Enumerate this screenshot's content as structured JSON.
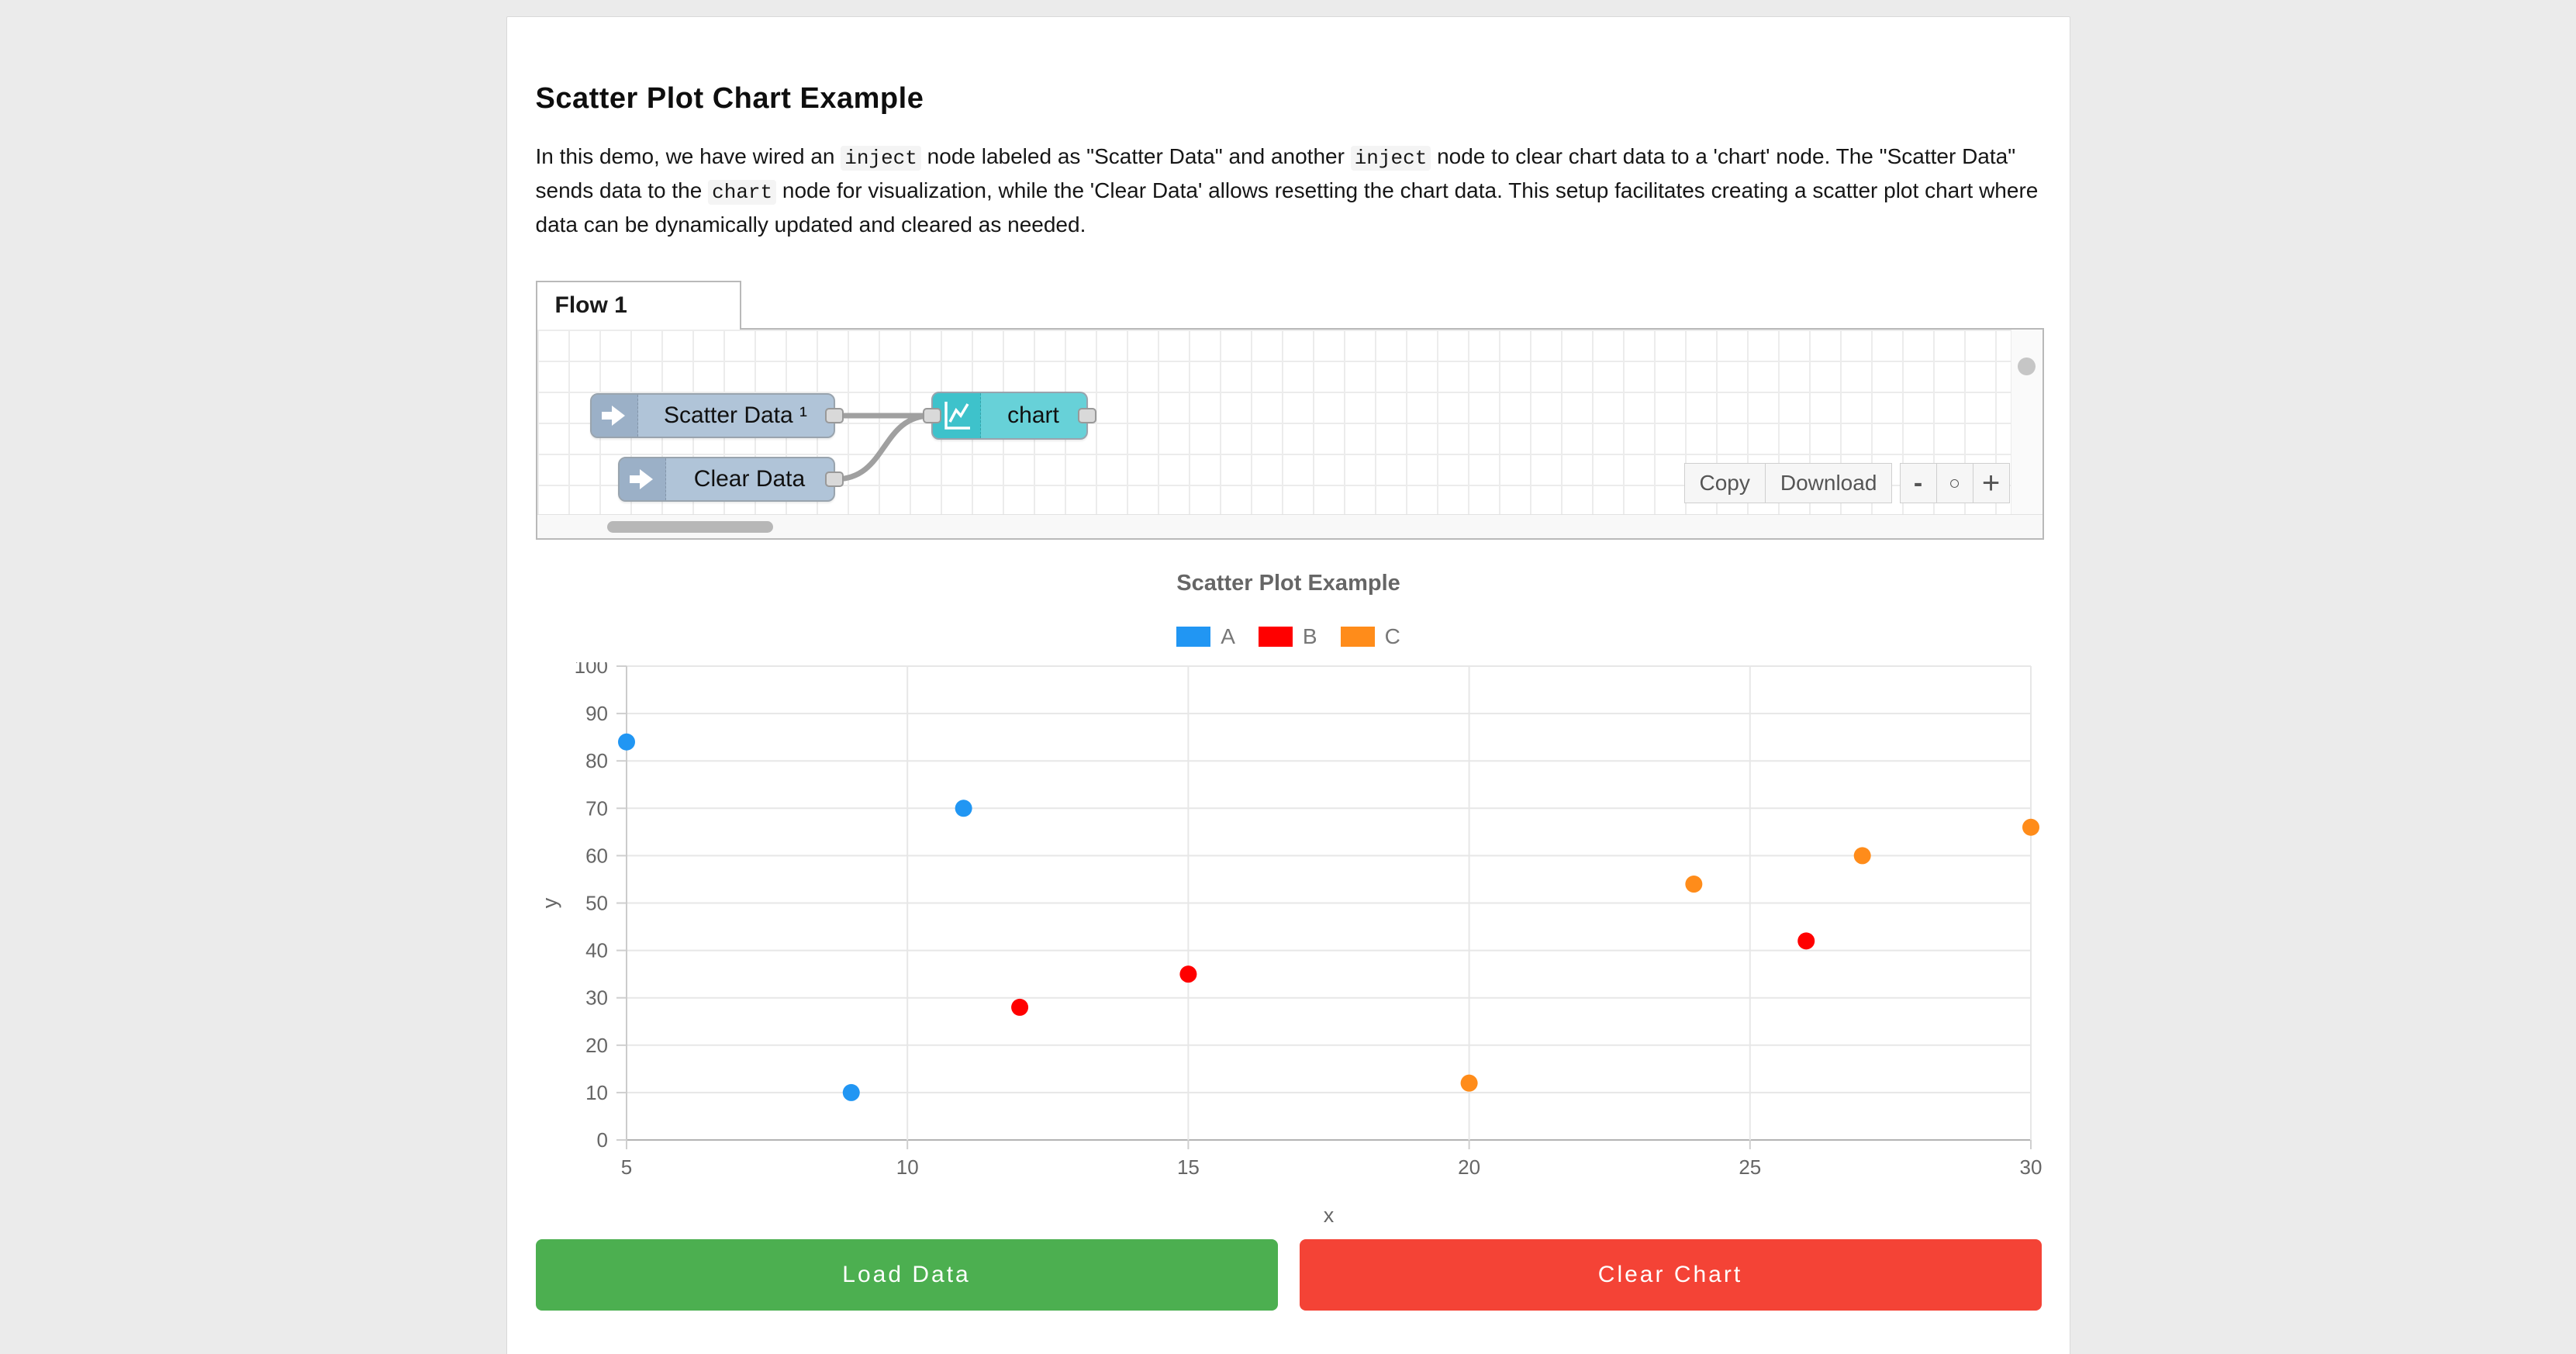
{
  "page": {
    "title": "Scatter Plot Chart Example"
  },
  "intro": {
    "segments": [
      {
        "text": "In this demo, we have wired an ",
        "code": false
      },
      {
        "text": "inject",
        "code": true
      },
      {
        "text": " node labeled as \"Scatter Data\" and another ",
        "code": false
      },
      {
        "text": "inject",
        "code": true
      },
      {
        "text": " node to clear chart data to a 'chart' node. The \"Scatter Data\" sends data to the ",
        "code": false
      },
      {
        "text": "chart",
        "code": true
      },
      {
        "text": " node for visualization, while the 'Clear Data' allows resetting the chart data. This setup facilitates creating a scatter plot chart where data can be dynamically updated and cleared as needed.",
        "code": false
      }
    ]
  },
  "flow_editor": {
    "tab_label": "Flow 1",
    "nodes": [
      {
        "label": "Scatter Data ¹",
        "type": "inject"
      },
      {
        "label": "Clear Data",
        "type": "inject"
      },
      {
        "label": "chart",
        "type": "chart"
      }
    ],
    "toolbar": {
      "copy_label": "Copy",
      "download_label": "Download"
    },
    "zoom_controls": {
      "zoom_out": "-",
      "zoom_reset": "○",
      "zoom_in": "+"
    }
  },
  "chart_data": {
    "type": "scatter",
    "title": "Scatter Plot Example",
    "xlabel": "x",
    "ylabel": "y",
    "xlim": [
      5,
      30
    ],
    "ylim": [
      0,
      100
    ],
    "xticks": [
      5,
      10,
      15,
      20,
      25,
      30
    ],
    "yticks": [
      0,
      10,
      20,
      30,
      40,
      50,
      60,
      70,
      80,
      90,
      100
    ],
    "grid": true,
    "legend_position": "top",
    "series": [
      {
        "name": "A",
        "color": "#2196f3",
        "points": [
          [
            5,
            84
          ],
          [
            9,
            10
          ],
          [
            11,
            70
          ]
        ]
      },
      {
        "name": "B",
        "color": "#ff0000",
        "points": [
          [
            12,
            28
          ],
          [
            15,
            35
          ],
          [
            26,
            42
          ]
        ]
      },
      {
        "name": "C",
        "color": "#ff8c1a",
        "points": [
          [
            20,
            12
          ],
          [
            24,
            54
          ],
          [
            27,
            60
          ],
          [
            30,
            66
          ]
        ]
      }
    ]
  },
  "actions": {
    "load_label": "Load Data",
    "clear_label": "Clear Chart"
  },
  "colors": {
    "load_button": "#4caf50",
    "clear_button": "#f44336",
    "series_a": "#2196f3",
    "series_b": "#ff0000",
    "series_c": "#ff8c1a"
  }
}
